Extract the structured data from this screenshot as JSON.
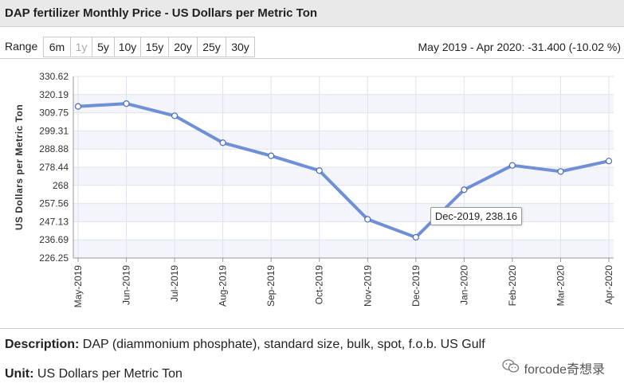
{
  "header": {
    "title": "DAP fertilizer Monthly Price - US Dollars per Metric Ton"
  },
  "range": {
    "label": "Range",
    "buttons": [
      {
        "label": "6m",
        "enabled": true
      },
      {
        "label": "1y",
        "enabled": false
      },
      {
        "label": "5y",
        "enabled": true
      },
      {
        "label": "10y",
        "enabled": true
      },
      {
        "label": "15y",
        "enabled": true
      },
      {
        "label": "20y",
        "enabled": true
      },
      {
        "label": "25y",
        "enabled": true
      },
      {
        "label": "30y",
        "enabled": true
      }
    ],
    "summary": "May 2019 - Apr 2020: -31.400 (-10.02 %)"
  },
  "chart_data": {
    "type": "line",
    "title": "DAP fertilizer Monthly Price - US Dollars per Metric Ton",
    "xlabel": "",
    "ylabel": "US Dollars per Metric Ton",
    "categories": [
      "May-2019",
      "Jun-2019",
      "Jul-2019",
      "Aug-2019",
      "Sep-2019",
      "Oct-2019",
      "Nov-2019",
      "Dec-2019",
      "Jan-2020",
      "Feb-2020",
      "Mar-2020",
      "Apr-2020"
    ],
    "series": [
      {
        "values": [
          313.4,
          315.0,
          308.0,
          292.5,
          285.0,
          276.5,
          248.5,
          238.16,
          265.5,
          279.5,
          276.0,
          282.0
        ]
      }
    ],
    "yticks": [
      "330.62",
      "320.19",
      "309.75",
      "299.31",
      "288.88",
      "278.44",
      "268",
      "257.56",
      "247.13",
      "236.69",
      "226.25"
    ],
    "ylim": [
      226.25,
      330.62
    ],
    "grid": true,
    "line_color": "#6f8fd6",
    "tooltip": {
      "text": "Dec-2019, 238.16",
      "index": 7
    }
  },
  "footer": {
    "description_label": "Description:",
    "description_text": "DAP (diammonium phosphate), standard size, bulk, spot, f.o.b. US Gulf",
    "unit_label": "Unit:",
    "unit_text": "US Dollars per Metric Ton",
    "watermark": "forcode奇想录",
    "watermark_icon": "wechat-icon"
  }
}
